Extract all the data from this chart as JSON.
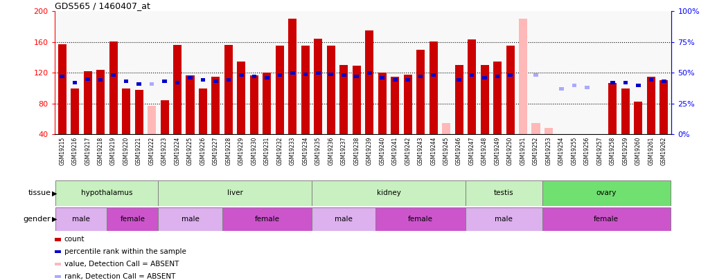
{
  "title": "GDS565 / 1460407_at",
  "samples": [
    "GSM19215",
    "GSM19216",
    "GSM19217",
    "GSM19218",
    "GSM19219",
    "GSM19220",
    "GSM19221",
    "GSM19222",
    "GSM19223",
    "GSM19224",
    "GSM19225",
    "GSM19226",
    "GSM19227",
    "GSM19228",
    "GSM19229",
    "GSM19230",
    "GSM19231",
    "GSM19232",
    "GSM19233",
    "GSM19234",
    "GSM19235",
    "GSM19236",
    "GSM19237",
    "GSM19238",
    "GSM19239",
    "GSM19240",
    "GSM19241",
    "GSM19242",
    "GSM19243",
    "GSM19244",
    "GSM19245",
    "GSM19246",
    "GSM19247",
    "GSM19248",
    "GSM19249",
    "GSM19250",
    "GSM19251",
    "GSM19252",
    "GSM19253",
    "GSM19254",
    "GSM19255",
    "GSM19256",
    "GSM19257",
    "GSM19258",
    "GSM19259",
    "GSM19260",
    "GSM19261",
    "GSM19262"
  ],
  "count_values": [
    157,
    100,
    122,
    124,
    161,
    100,
    98,
    null,
    84,
    156,
    117,
    100,
    115,
    156,
    135,
    117,
    120,
    155,
    190,
    155,
    164,
    155,
    130,
    129,
    175,
    120,
    115,
    118,
    150,
    161,
    null,
    130,
    163,
    130,
    135,
    155,
    null,
    null,
    null,
    null,
    null,
    null,
    null,
    107,
    100,
    83,
    115,
    110
  ],
  "absent_values": [
    null,
    null,
    null,
    null,
    null,
    null,
    null,
    77,
    null,
    null,
    null,
    null,
    null,
    null,
    null,
    null,
    null,
    null,
    null,
    null,
    null,
    null,
    null,
    null,
    null,
    null,
    null,
    null,
    null,
    null,
    55,
    null,
    null,
    null,
    null,
    null,
    190,
    55,
    48,
    28,
    35,
    28,
    28,
    null,
    null,
    null,
    null,
    null
  ],
  "rank_values": [
    47,
    42,
    45,
    44,
    48,
    43,
    41,
    null,
    43,
    42,
    46,
    44,
    43,
    44,
    48,
    47,
    46,
    48,
    50,
    49,
    50,
    49,
    48,
    47,
    50,
    46,
    44,
    44,
    47,
    48,
    null,
    44,
    48,
    46,
    47,
    48,
    null,
    null,
    null,
    null,
    null,
    null,
    null,
    42,
    42,
    40,
    44,
    43
  ],
  "absent_rank_values": [
    null,
    null,
    null,
    null,
    null,
    null,
    null,
    41,
    null,
    null,
    null,
    null,
    null,
    null,
    null,
    null,
    null,
    null,
    null,
    null,
    null,
    null,
    null,
    null,
    null,
    null,
    null,
    null,
    null,
    null,
    null,
    null,
    null,
    null,
    null,
    null,
    null,
    48,
    null,
    37,
    40,
    38,
    null,
    null,
    null,
    null,
    null,
    null
  ],
  "tissue_groups": [
    {
      "name": "hypothalamus",
      "start": 0,
      "end": 7
    },
    {
      "name": "liver",
      "start": 8,
      "end": 19
    },
    {
      "name": "kidney",
      "start": 20,
      "end": 31
    },
    {
      "name": "testis",
      "start": 32,
      "end": 37
    },
    {
      "name": "ovary",
      "start": 38,
      "end": 47
    }
  ],
  "tissue_colors": {
    "hypothalamus": "#c8f0c0",
    "liver": "#c8f0c0",
    "kidney": "#c8f0c0",
    "testis": "#c8f0c0",
    "ovary": "#70e070"
  },
  "gender_groups": [
    {
      "name": "male",
      "start": 0,
      "end": 3
    },
    {
      "name": "female",
      "start": 4,
      "end": 7
    },
    {
      "name": "male",
      "start": 8,
      "end": 12
    },
    {
      "name": "female",
      "start": 13,
      "end": 19
    },
    {
      "name": "male",
      "start": 20,
      "end": 24
    },
    {
      "name": "female",
      "start": 25,
      "end": 31
    },
    {
      "name": "male",
      "start": 32,
      "end": 37
    },
    {
      "name": "female",
      "start": 38,
      "end": 47
    }
  ],
  "gender_colors": {
    "male": "#ddb0ee",
    "female": "#cc55cc"
  },
  "ylim_left": [
    40,
    200
  ],
  "ylim_right": [
    0,
    100
  ],
  "yticks_left": [
    40,
    80,
    120,
    160,
    200
  ],
  "yticks_right": [
    0,
    25,
    50,
    75,
    100
  ],
  "grid_lines": [
    80,
    120,
    160
  ],
  "bar_color": "#cc0000",
  "absent_bar_color": "#ffb8b8",
  "rank_color": "#0000cc",
  "absent_rank_color": "#aaaaff",
  "bg_color": "#f8f8f8",
  "legend_items": [
    {
      "color": "#cc0000",
      "label": "count"
    },
    {
      "color": "#0000cc",
      "label": "percentile rank within the sample"
    },
    {
      "color": "#ffb8b8",
      "label": "value, Detection Call = ABSENT"
    },
    {
      "color": "#aaaaff",
      "label": "rank, Detection Call = ABSENT"
    }
  ]
}
